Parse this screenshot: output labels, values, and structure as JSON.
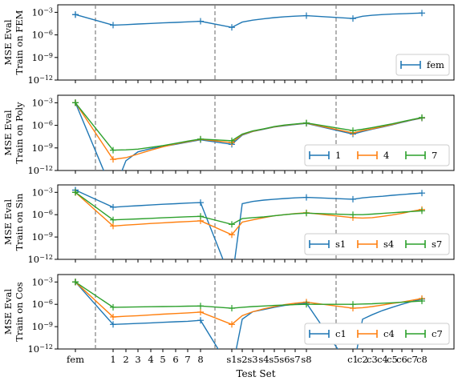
{
  "figure": {
    "xlabel": "Test Set",
    "x_ticks": [
      "fem",
      "1",
      "2",
      "3",
      "4",
      "5",
      "6",
      "7",
      "8",
      "s1",
      "s2",
      "s3",
      "s4",
      "s5",
      "s6",
      "s7",
      "s8",
      "c1",
      "c2",
      "c3",
      "c4",
      "c5",
      "c6",
      "c7",
      "c8"
    ]
  },
  "colors": {
    "blue": "#1f77b4",
    "orange": "#ff7f0e",
    "green": "#2ca02c",
    "divider": "#808080"
  },
  "chart_data": [
    {
      "type": "line",
      "yscale": "log",
      "ylabel": [
        "MSE Eval",
        "Train on FEM"
      ],
      "ylim": [
        1e-12,
        0.01
      ],
      "yticks": [
        "10^{-3}",
        "10^{-6}",
        "10^{-9}",
        "10^{-12}"
      ],
      "x": [
        "fem",
        "1",
        "2",
        "3",
        "4",
        "5",
        "6",
        "7",
        "8",
        "s1",
        "s2",
        "s3",
        "s4",
        "s5",
        "s6",
        "s7",
        "s8",
        "c1",
        "c2",
        "c3",
        "c4",
        "c5",
        "c6",
        "c7",
        "c8"
      ],
      "legend_position": "lower-right",
      "legend_columns": 1,
      "series": [
        {
          "name": "fem",
          "color": "blue",
          "values": [
            0.0005,
            2e-05,
            2.3e-05,
            2.8e-05,
            3.3e-05,
            3.9e-05,
            4.6e-05,
            5.4e-05,
            6.5e-05,
            1e-05,
            5e-05,
            9e-05,
            0.00014,
            0.0002,
            0.00026,
            0.00031,
            0.00036,
            0.00015,
            0.0003,
            0.0004,
            0.0005,
            0.00058,
            0.00065,
            0.00072,
            0.0008
          ]
        }
      ]
    },
    {
      "type": "line",
      "yscale": "log",
      "ylabel": [
        "MSE Eval",
        "Train on Poly"
      ],
      "ylim": [
        1e-12,
        0.01
      ],
      "yticks": [
        "10^{-3}",
        "10^{-6}",
        "10^{-9}",
        "10^{-12}"
      ],
      "x": [
        "fem",
        "1",
        "2",
        "3",
        "4",
        "5",
        "6",
        "7",
        "8",
        "s1",
        "s2",
        "s3",
        "s4",
        "s5",
        "s6",
        "s7",
        "s8",
        "c1",
        "c2",
        "c3",
        "c4",
        "c5",
        "c6",
        "c7",
        "c8"
      ],
      "legend_position": "lower-right",
      "legend_columns": 3,
      "series": [
        {
          "name": "1",
          "color": "blue",
          "values": [
            0.001,
            1e-15,
            2e-11,
            3e-10,
            8e-10,
            1.5e-09,
            3e-09,
            6e-09,
            1.2e-08,
            3e-09,
            5e-08,
            1.5e-07,
            3e-07,
            6e-07,
            9e-07,
            1.3e-06,
            1.8e-06,
            7e-08,
            1.5e-07,
            3e-07,
            6e-07,
            1.2e-06,
            2.5e-06,
            5e-06,
            9e-06
          ]
        },
        {
          "name": "4",
          "color": "orange",
          "values": [
            0.001,
            3e-11,
            5e-11,
            1.5e-10,
            5e-10,
            1.4e-09,
            3.5e-09,
            7e-09,
            1.4e-08,
            5e-09,
            6e-08,
            1.6e-07,
            3.3e-07,
            6.5e-07,
            1e-06,
            1.4e-06,
            2e-06,
            1e-07,
            2e-07,
            3.5e-07,
            7e-07,
            1.3e-06,
            2.7e-06,
            5.5e-06,
            1e-05
          ]
        },
        {
          "name": "7",
          "color": "green",
          "values": [
            0.001,
            5e-10,
            5.5e-10,
            7e-10,
            1.2e-09,
            2e-09,
            4e-09,
            8e-09,
            1.5e-08,
            9e-09,
            7e-08,
            1.8e-07,
            3.5e-07,
            7e-07,
            1.1e-06,
            1.5e-06,
            2.1e-06,
            2e-07,
            3e-07,
            5e-07,
            9e-07,
            1.6e-06,
            3e-06,
            6e-06,
            1.1e-05
          ]
        }
      ]
    },
    {
      "type": "line",
      "yscale": "log",
      "ylabel": [
        "MSE Eval",
        "Train on Sin"
      ],
      "ylim": [
        1e-12,
        0.01
      ],
      "yticks": [
        "10^{-3}",
        "10^{-6}",
        "10^{-9}",
        "10^{-12}"
      ],
      "x": [
        "fem",
        "1",
        "2",
        "3",
        "4",
        "5",
        "6",
        "7",
        "8",
        "s1",
        "s2",
        "s3",
        "s4",
        "s5",
        "s6",
        "s7",
        "s8",
        "c1",
        "c2",
        "c3",
        "c4",
        "c5",
        "c6",
        "c7",
        "c8"
      ],
      "legend_position": "lower-right",
      "legend_columns": 3,
      "series": [
        {
          "name": "s1",
          "color": "blue",
          "values": [
            0.002,
            1e-05,
            1.3e-05,
            1.6e-05,
            2e-05,
            2.5e-05,
            3e-05,
            3.6e-05,
            4.2e-05,
            1e-15,
            3e-05,
            6e-05,
            9e-05,
            0.00012,
            0.00015,
            0.00018,
            0.00021,
            0.00012,
            0.00018,
            0.00024,
            0.0003,
            0.0004,
            0.0005,
            0.00065,
            0.0008
          ]
        },
        {
          "name": "s4",
          "color": "orange",
          "values": [
            0.001,
            3e-08,
            4e-08,
            5e-08,
            6.5e-08,
            8e-08,
            1e-07,
            1.2e-07,
            1.5e-07,
            2e-09,
            1e-07,
            2e-07,
            4e-07,
            7e-07,
            1e-06,
            1.4e-06,
            1.8e-06,
            4e-07,
            3.5e-07,
            4e-07,
            6e-07,
            9e-07,
            1.5e-06,
            3e-06,
            5e-06
          ]
        },
        {
          "name": "s7",
          "color": "green",
          "values": [
            0.001,
            2e-07,
            2.3e-07,
            2.7e-07,
            3.2e-07,
            3.8e-07,
            4.5e-07,
            5.3e-07,
            6e-07,
            5e-08,
            3e-07,
            4e-07,
            5e-07,
            7e-07,
            1e-06,
            1.3e-06,
            1.6e-06,
            1e-06,
            1e-06,
            1.2e-06,
            1.5e-06,
            1.8e-06,
            2.2e-06,
            2.7e-06,
            3.3e-06
          ]
        }
      ]
    },
    {
      "type": "line",
      "yscale": "log",
      "ylabel": [
        "MSE Eval",
        "Train on Cos"
      ],
      "ylim": [
        1e-12,
        0.01
      ],
      "yticks": [
        "10^{-3}",
        "10^{-6}",
        "10^{-9}",
        "10^{-12}"
      ],
      "x": [
        "fem",
        "1",
        "2",
        "3",
        "4",
        "5",
        "6",
        "7",
        "8",
        "s1",
        "s2",
        "s3",
        "s4",
        "s5",
        "s6",
        "s7",
        "s8",
        "c1",
        "c2",
        "c3",
        "c4",
        "c5",
        "c6",
        "c7",
        "c8"
      ],
      "legend_position": "lower-right",
      "legend_columns": 3,
      "series": [
        {
          "name": "c1",
          "color": "blue",
          "values": [
            0.001,
            2e-09,
            2.3e-09,
            2.7e-09,
            3.2e-09,
            3.8e-09,
            4.5e-09,
            5.3e-09,
            7e-09,
            1e-15,
            1e-08,
            1e-07,
            2e-07,
            4e-07,
            7e-07,
            1e-06,
            1.5e-06,
            1e-15,
            1e-08,
            4e-08,
            1.5e-07,
            4e-07,
            1e-06,
            2.5e-06,
            5e-06
          ]
        },
        {
          "name": "c4",
          "color": "orange",
          "values": [
            0.001,
            2e-08,
            2.5e-08,
            3e-08,
            3.8e-08,
            4.7e-08,
            5.8e-08,
            7e-08,
            9e-08,
            2e-09,
            3e-08,
            1e-07,
            2.5e-07,
            5e-07,
            9e-07,
            1.4e-06,
            2e-06,
            3e-07,
            3.5e-07,
            5e-07,
            8e-07,
            1.3e-06,
            2e-06,
            3.5e-06,
            6e-06
          ]
        },
        {
          "name": "c7",
          "color": "green",
          "values": [
            0.001,
            4e-07,
            4.2e-07,
            4.5e-07,
            4.8e-07,
            5e-07,
            5.3e-07,
            5.6e-07,
            6e-07,
            3e-07,
            4e-07,
            5e-07,
            6e-07,
            7e-07,
            8e-07,
            9e-07,
            1e-06,
            1e-06,
            1.1e-06,
            1.2e-06,
            1.4e-06,
            1.6e-06,
            1.9e-06,
            2.3e-06,
            2.8e-06
          ]
        }
      ]
    }
  ]
}
